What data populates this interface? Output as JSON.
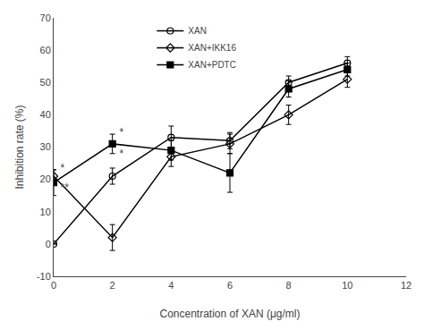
{
  "chart_data": {
    "type": "line",
    "x": [
      0,
      2,
      4,
      6,
      8,
      10
    ],
    "series": [
      {
        "name": "XAN",
        "color": "#000000",
        "marker": "circle-open",
        "line_style": "solid",
        "values": [
          0,
          21,
          33,
          32,
          50,
          56
        ],
        "error": [
          0,
          2.5,
          3.5,
          2.5,
          2,
          2
        ]
      },
      {
        "name": "XAN+IKK16",
        "color": "#000000",
        "marker": "diamond-open",
        "line_style": "solid",
        "values": [
          21,
          2,
          27,
          31,
          40,
          51
        ],
        "error": [
          2,
          4,
          3,
          3,
          3,
          2.5
        ]
      },
      {
        "name": "XAN+PDTC",
        "color": "#000000",
        "marker": "square",
        "line_style": "solid",
        "values": [
          19,
          31,
          29,
          22,
          48,
          54
        ],
        "error": [
          4,
          3,
          3,
          6,
          2.5,
          2
        ]
      }
    ],
    "xlabel": "Concentration of XAN (μg/ml)",
    "ylabel": "Inhibition rate (%)",
    "xlim": [
      0,
      12
    ],
    "ylim": [
      -10,
      70
    ],
    "xticks": [
      0,
      2,
      4,
      6,
      8,
      10,
      12
    ],
    "yticks": [
      -10,
      0,
      10,
      20,
      30,
      40,
      50,
      60,
      70
    ],
    "annotations": [
      {
        "x": 0.15,
        "y": 23.5,
        "text": "*"
      },
      {
        "x": 0.15,
        "y": 17.5,
        "text": "**"
      },
      {
        "x": 2.15,
        "y": 34.5,
        "text": "*"
      },
      {
        "x": 2.15,
        "y": 28.0,
        "text": "*"
      }
    ],
    "legend": "upper left",
    "grid": false
  }
}
